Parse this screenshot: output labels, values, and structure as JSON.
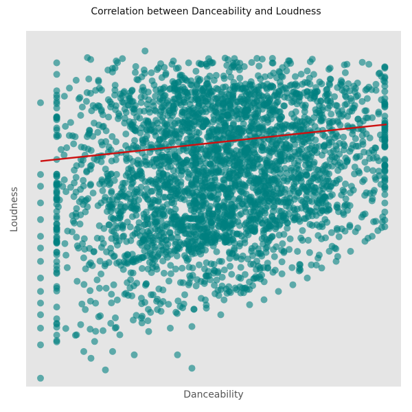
{
  "chart_data": {
    "type": "scatter",
    "title": "Correlation between Danceability and Loudness",
    "xlabel": "Danceability",
    "ylabel": "Loudness",
    "xlim": [
      -0.04,
      1.0
    ],
    "ylim": [
      -1.05,
      1.08
    ],
    "show_tick_labels": false,
    "grid": false,
    "point_color": "#008080",
    "point_alpha": 0.6,
    "background_color": "#e5e5e5",
    "regression": {
      "color": "#cc1111",
      "points": [
        [
          0.0,
          0.3
        ],
        [
          0.96,
          0.52
        ]
      ]
    },
    "series": [
      {
        "points": [
          [
            0.0,
            0.65
          ],
          [
            0.0,
            0.22
          ],
          [
            0.0,
            0.15
          ],
          [
            0.0,
            0.05
          ],
          [
            0.0,
            -0.05
          ],
          [
            0.0,
            -0.15
          ],
          [
            0.0,
            -0.22
          ],
          [
            0.0,
            -0.3
          ],
          [
            0.0,
            -0.4
          ],
          [
            0.0,
            -0.48
          ],
          [
            0.0,
            -0.55
          ],
          [
            0.0,
            -0.62
          ],
          [
            0.0,
            -0.7
          ],
          [
            0.0,
            -0.8
          ],
          [
            0.0,
            -1.0
          ],
          [
            0.29,
            0.96
          ],
          [
            0.46,
            0.88
          ],
          [
            0.13,
            0.92
          ],
          [
            0.21,
            0.9
          ],
          [
            0.85,
            0.88
          ],
          [
            0.8,
            0.85
          ],
          [
            0.74,
            0.84
          ],
          [
            0.18,
            -0.95
          ],
          [
            0.42,
            -0.94
          ],
          [
            0.38,
            -0.86
          ],
          [
            0.2,
            -0.84
          ],
          [
            0.26,
            -0.86
          ],
          [
            0.14,
            -0.88
          ],
          [
            0.12,
            -0.84
          ],
          [
            0.1,
            -0.74
          ],
          [
            0.15,
            -0.78
          ],
          [
            0.22,
            -0.74
          ],
          [
            0.3,
            -0.72
          ],
          [
            0.36,
            -0.7
          ],
          [
            0.42,
            -0.69
          ],
          [
            0.28,
            -0.64
          ],
          [
            0.5,
            -0.62
          ],
          [
            0.46,
            -0.58
          ],
          [
            0.58,
            -0.56
          ],
          [
            0.62,
            -0.53
          ],
          [
            0.66,
            -0.48
          ],
          [
            0.7,
            -0.44
          ],
          [
            0.74,
            -0.4
          ],
          [
            0.78,
            -0.34
          ],
          [
            0.82,
            -0.3
          ],
          [
            0.86,
            -0.24
          ],
          [
            0.9,
            -0.18
          ],
          [
            0.92,
            -0.15
          ],
          [
            0.88,
            -0.1
          ],
          [
            0.93,
            -0.06
          ],
          [
            0.72,
            -0.32
          ],
          [
            0.6,
            -0.4
          ],
          [
            0.54,
            -0.46
          ],
          [
            0.4,
            -0.5
          ],
          [
            0.34,
            -0.54
          ]
        ]
      }
    ]
  }
}
